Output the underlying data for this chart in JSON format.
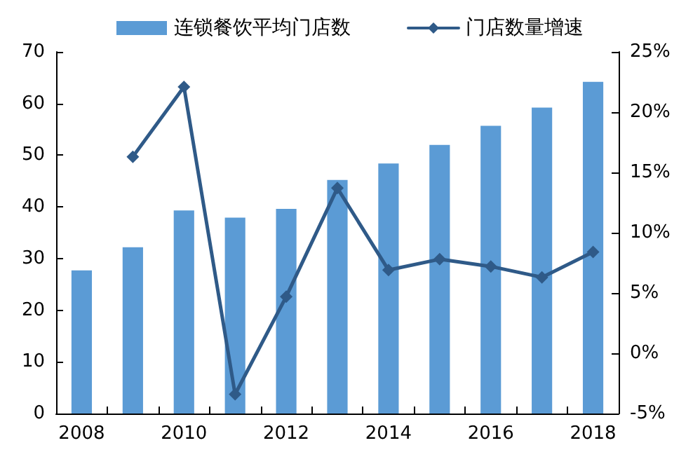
{
  "chart_data": {
    "type": "bar",
    "categories": [
      "2008",
      null,
      "2010",
      null,
      "2012",
      null,
      "2014",
      null,
      "2016",
      null,
      "2018"
    ],
    "series": [
      {
        "name": "连锁餐饮平均门店数",
        "color": "#5b9bd5",
        "values": [
          27.7,
          32.2,
          39.3,
          37.9,
          39.6,
          45.2,
          48.4,
          52,
          55.7,
          59.2,
          64.2
        ]
      },
      {
        "name": "门店数量增速",
        "type": "line",
        "axis": "y2",
        "color": "#2f5a88",
        "marker": "diamond",
        "values": [
          null,
          16.3,
          22.1,
          -3.4,
          4.7,
          13.7,
          6.9,
          7.8,
          7.2,
          6.3,
          8.4
        ]
      }
    ],
    "ylim": [
      0,
      70
    ],
    "yticks": [
      0,
      10,
      20,
      30,
      40,
      50,
      60,
      70
    ],
    "y2lim": [
      -5,
      25
    ],
    "y2ticks": [
      {
        "value": -5,
        "label": "-5%"
      },
      {
        "value": 0,
        "label": "0%"
      },
      {
        "value": 5,
        "label": "5%"
      },
      {
        "value": 10,
        "label": "10%"
      },
      {
        "value": 15,
        "label": "15%"
      },
      {
        "value": 20,
        "label": "20%"
      },
      {
        "value": 25,
        "label": "25%"
      }
    ],
    "grid": false,
    "legend": "top"
  }
}
